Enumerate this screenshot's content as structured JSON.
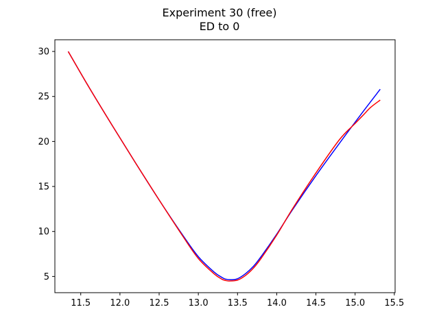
{
  "chart_data": {
    "type": "line",
    "title": "Experiment 30 (free)",
    "subtitle": "ED to 0",
    "xlabel": "",
    "ylabel": "",
    "xlim": [
      11.17,
      15.51
    ],
    "ylim": [
      3.2,
      31.3
    ],
    "x_ticks": [
      11.5,
      12.0,
      12.5,
      13.0,
      13.5,
      14.0,
      14.5,
      15.0,
      15.5
    ],
    "x_tick_labels": [
      "11.5",
      "12.0",
      "12.5",
      "13.0",
      "13.5",
      "14.0",
      "14.5",
      "15.0",
      "15.5"
    ],
    "y_ticks": [
      5,
      10,
      15,
      20,
      25,
      30
    ],
    "y_tick_labels": [
      "5",
      "10",
      "15",
      "20",
      "25",
      "30"
    ],
    "grid": false,
    "series": [
      {
        "color": "#0000ff",
        "x": [
          11.34,
          11.6,
          11.9,
          12.2,
          12.5,
          12.8,
          13.0,
          13.2,
          13.3,
          13.35,
          13.43,
          13.5,
          13.6,
          13.7,
          13.8,
          14.0,
          14.2,
          14.5,
          14.8,
          15.1,
          15.32
        ],
        "y": [
          30.0,
          26.1,
          21.8,
          17.6,
          13.5,
          9.6,
          7.2,
          5.5,
          4.9,
          4.7,
          4.65,
          4.75,
          5.3,
          6.1,
          7.2,
          9.7,
          12.4,
          16.2,
          19.8,
          23.3,
          25.8
        ]
      },
      {
        "color": "#ff0000",
        "x": [
          11.34,
          11.6,
          11.9,
          12.2,
          12.5,
          12.8,
          13.0,
          13.2,
          13.3,
          13.35,
          13.4,
          13.5,
          13.6,
          13.7,
          13.8,
          14.0,
          14.2,
          14.5,
          14.8,
          15.0,
          15.1,
          15.2,
          15.32
        ],
        "y": [
          30.0,
          26.1,
          21.8,
          17.6,
          13.5,
          9.5,
          7.0,
          5.3,
          4.7,
          4.55,
          4.5,
          4.6,
          5.1,
          5.9,
          7.0,
          9.6,
          12.5,
          16.5,
          20.2,
          22.0,
          22.9,
          23.8,
          24.6
        ]
      }
    ]
  }
}
